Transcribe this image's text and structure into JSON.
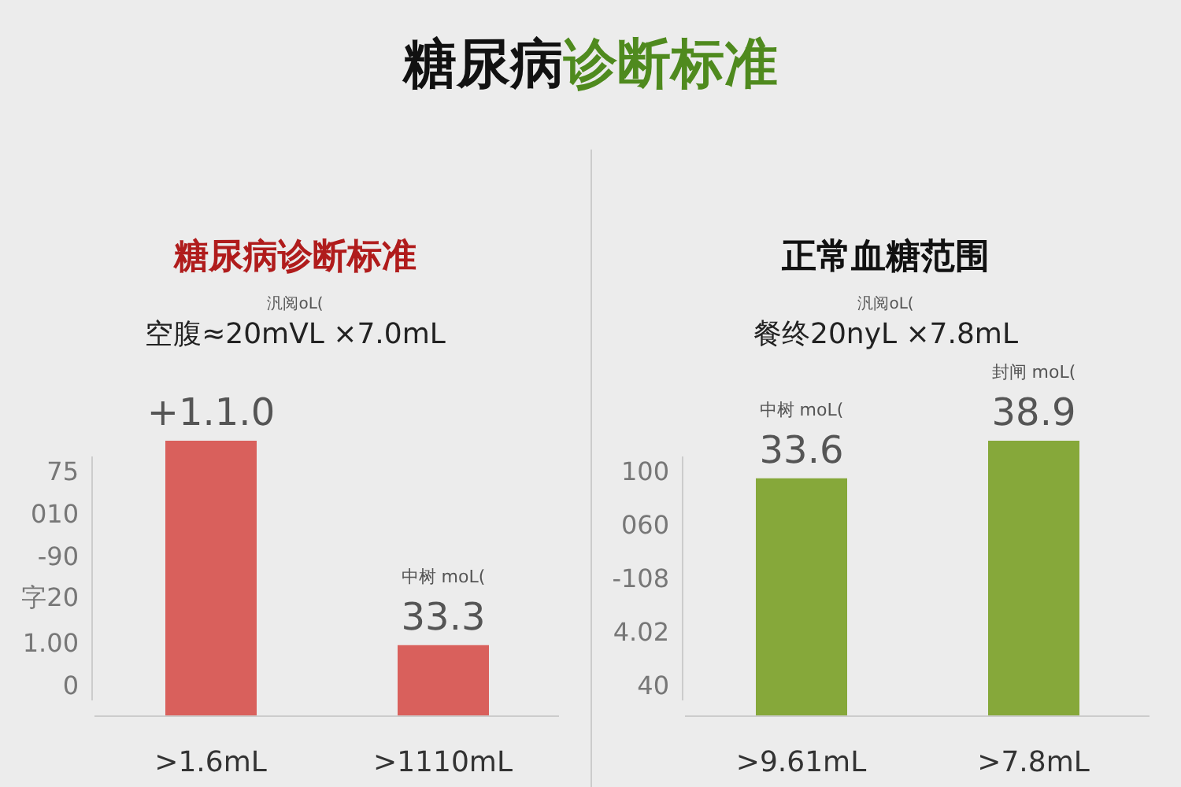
{
  "chart_data": [
    {
      "type": "bar",
      "title": "糖尿病诊断标准",
      "subtitle": "空腹≈20mVL ×7.0mL",
      "categories": [
        ">1.6mL",
        ">1110mL"
      ],
      "values": [
        129,
        33.3
      ],
      "color": "#d9605c",
      "value_labels": [
        "+1.1.0",
        "中树 moL(\n33.3"
      ],
      "annotations": [
        "糖尿病诊断标准",
        "汎阅oL(",
        "75",
        "010",
        "-90",
        "字20",
        "1.00",
        "0"
      ]
    },
    {
      "type": "bar",
      "title": "正常血糖范围",
      "subtitle": "餐终20nyL ×7.8mL",
      "categories": [
        ">9.61mL",
        ">7.8mL"
      ],
      "values": [
        33.6,
        38.9
      ],
      "color": "#86a83a",
      "value_labels": [
        "中树 moL(\n33.6",
        "封闸 moL(\n38.9"
      ],
      "annotations": [
        "汎阅oL(",
        "100",
        "060",
        "-108",
        "4.02",
        "40"
      ]
    }
  ]
}
